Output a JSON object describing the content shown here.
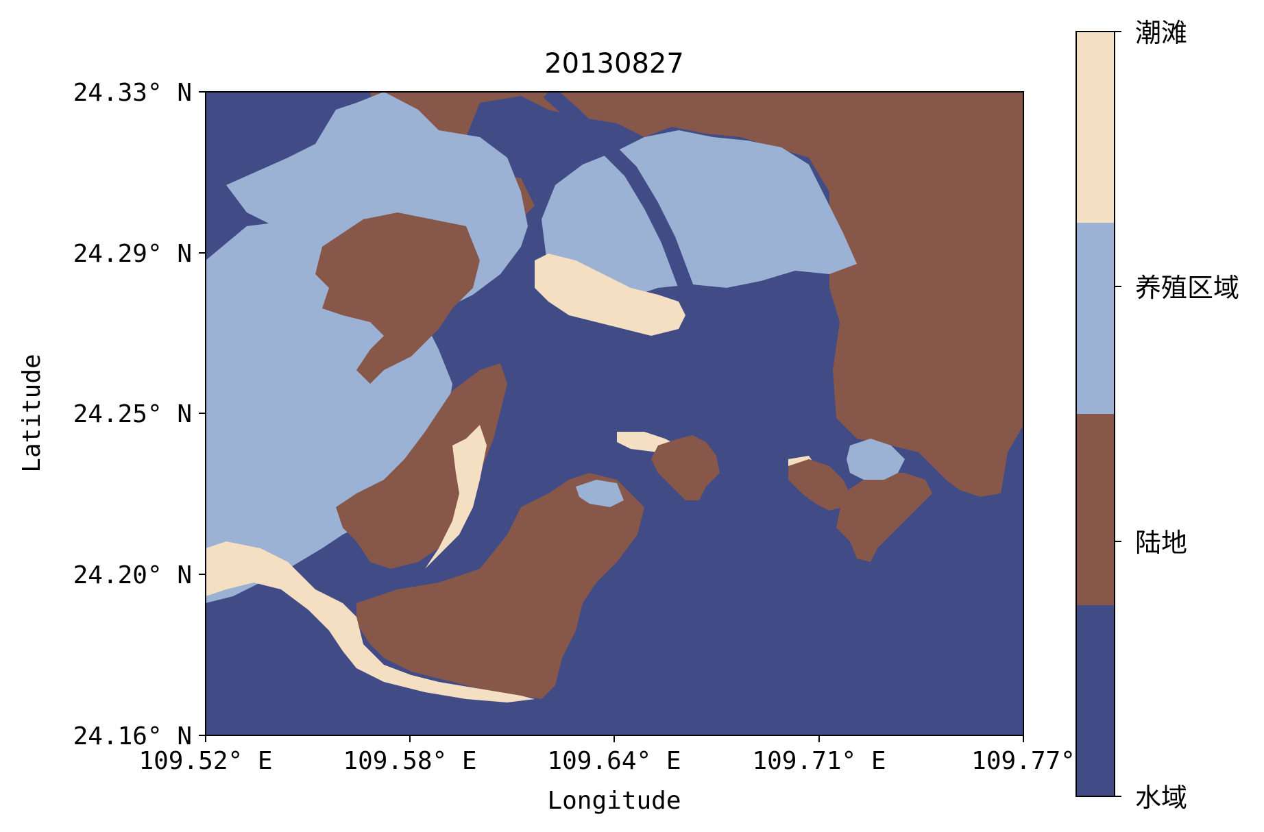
{
  "title": "20130827",
  "axes": {
    "x_label": "Longitude",
    "y_label": "Latitude",
    "x_ticks": [
      "109.52° E",
      "109.58° E",
      "109.64° E",
      "109.71° E",
      "109.77°"
    ],
    "y_ticks": [
      "24.33° N",
      "24.29° N",
      "24.25° N",
      "24.20° N",
      "24.16° N"
    ]
  },
  "legend": {
    "placement": "right",
    "classes": [
      {
        "label": "潮滩",
        "color": "#f5dfc2"
      },
      {
        "label": "养殖区域",
        "color": "#9bb2d4"
      },
      {
        "label": "陆地",
        "color": "#87574a"
      },
      {
        "label": "水域",
        "color": "#414c86"
      }
    ]
  },
  "colors": {
    "water": "#414c86",
    "land": "#87574a",
    "aquaculture": "#9bb2d4",
    "tidal_flat": "#f5dfc2"
  }
}
